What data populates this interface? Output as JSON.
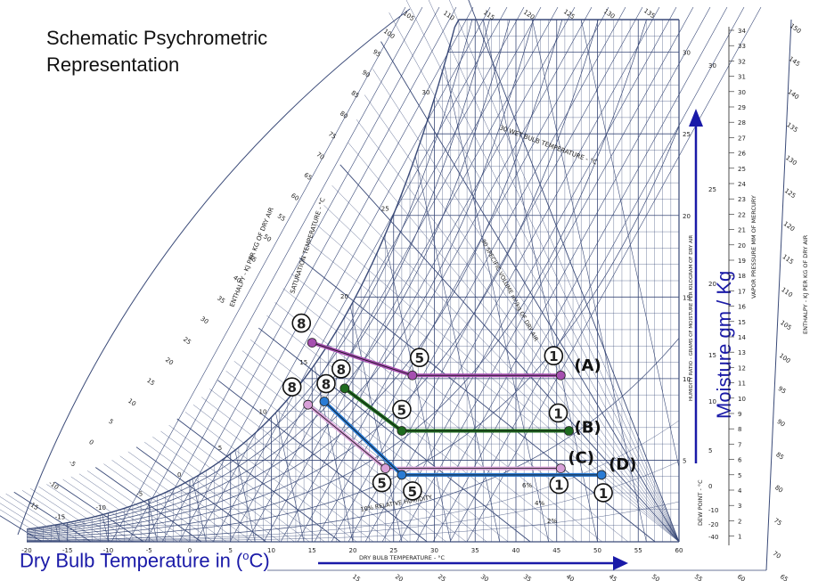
{
  "heading": {
    "line1": "Schematic Psychrometric",
    "line2": "Representation"
  },
  "x_axis_label": {
    "prefix": "Dry Bulb Temperature in (",
    "sup": "o",
    "suffix": "C)"
  },
  "y_axis_label": "Moisture gm / Kg",
  "chart_text": {
    "dry_bulb": "DRY BULB TEMPERATURE - °C",
    "wet_bulb": "30 WET BULB TEMPERATURE - °C",
    "saturation": "SATURATION TEMPERATURE - °C",
    "enthalpy_left": "ENTHALPY - KJ PER KG OF DRY AIR",
    "enthalpy_right": "ENTHALPY - KJ PER KG OF DRY AIR",
    "specific_volume": "90 SPECIFIC VOLUME m³/kg OF DRY AIR",
    "vapor_pressure": "VAPOR PRESSURE MM OF MERCURY",
    "dew_point": "DEW POINT - °C",
    "humidity_ratio": "HUMIDITY RATIO - GRAMS OF MOISTURE PER KILOGRAM OF DRY AIR",
    "rh_label": "10% RELATIVE HUMIDITY",
    "rh_small": [
      "2%",
      "4%",
      "6%"
    ]
  },
  "x_ticks": [
    -20,
    -15,
    -10,
    -5,
    0,
    5,
    10,
    15,
    20,
    25,
    30,
    35,
    40,
    45,
    50,
    55,
    60
  ],
  "y_ticks": [
    5,
    10,
    15,
    20,
    25,
    30
  ],
  "vp_ticks": [
    34,
    33,
    32,
    31,
    30,
    29,
    28,
    27,
    26,
    25,
    24,
    23,
    22,
    21,
    20,
    19,
    18,
    17,
    16,
    15,
    14,
    13,
    12,
    11,
    10,
    9,
    8,
    7,
    6,
    5,
    4,
    3,
    2,
    1
  ],
  "dp_ticks": [
    30,
    25,
    20,
    15,
    10,
    5,
    0,
    -10,
    -20,
    -40
  ],
  "top_enthalpy_ticks": [
    105,
    110,
    115,
    120,
    125,
    130,
    135
  ],
  "right_enthalpy_ticks": [
    150,
    145,
    140,
    135,
    130,
    125,
    120,
    115,
    110,
    105,
    100,
    95,
    90,
    85,
    80,
    75,
    70
  ],
  "bottom_enthalpy_ticks": [
    15,
    20,
    25,
    30,
    35,
    40,
    45,
    50,
    55,
    60,
    65
  ],
  "left_enthalpy_ticks": [
    100,
    95,
    90,
    85,
    80,
    75,
    70,
    65,
    60,
    55,
    50,
    45,
    40,
    35,
    30,
    25,
    20,
    15,
    10,
    5,
    0,
    -5,
    -10,
    -15
  ],
  "wb_ticks": [
    -15,
    -10,
    -5,
    0,
    5,
    10,
    15,
    20,
    25,
    30
  ],
  "processes": [
    {
      "id": "A",
      "color": "#a64fb0",
      "points": [
        {
          "t": 15,
          "w": 12.2
        },
        {
          "t": 27.3,
          "w": 10.2
        },
        {
          "t": 45.5,
          "w": 10.2
        }
      ],
      "labels": {
        "start": "8",
        "mid": "5",
        "end": "1",
        "case": "(A)"
      }
    },
    {
      "id": "B",
      "color": "#1f6b1f",
      "points": [
        {
          "t": 19,
          "w": 9.4
        },
        {
          "t": 26,
          "w": 6.8
        },
        {
          "t": 46.5,
          "w": 6.8
        }
      ],
      "labels": {
        "start": "8",
        "mid": "5",
        "end": "1",
        "case": "(B)"
      }
    },
    {
      "id": "C",
      "color": "#d8a0d8",
      "points": [
        {
          "t": 14.5,
          "w": 8.4
        },
        {
          "t": 24,
          "w": 4.5
        },
        {
          "t": 45.5,
          "w": 4.5
        }
      ],
      "labels": {
        "start": "8",
        "mid": "5",
        "end": "1",
        "case": "(C)"
      }
    },
    {
      "id": "D",
      "color": "#2a7bd4",
      "points": [
        {
          "t": 16.5,
          "w": 8.6
        },
        {
          "t": 26,
          "w": 4.1
        },
        {
          "t": 50.5,
          "w": 4.1
        }
      ],
      "labels": {
        "start": "8",
        "mid": "5",
        "end": "1",
        "case": "(D)"
      }
    }
  ],
  "colors": {
    "grid": "#3a4a78",
    "arrow": "#1a1aa8",
    "text_blue": "#1a1aa8"
  }
}
